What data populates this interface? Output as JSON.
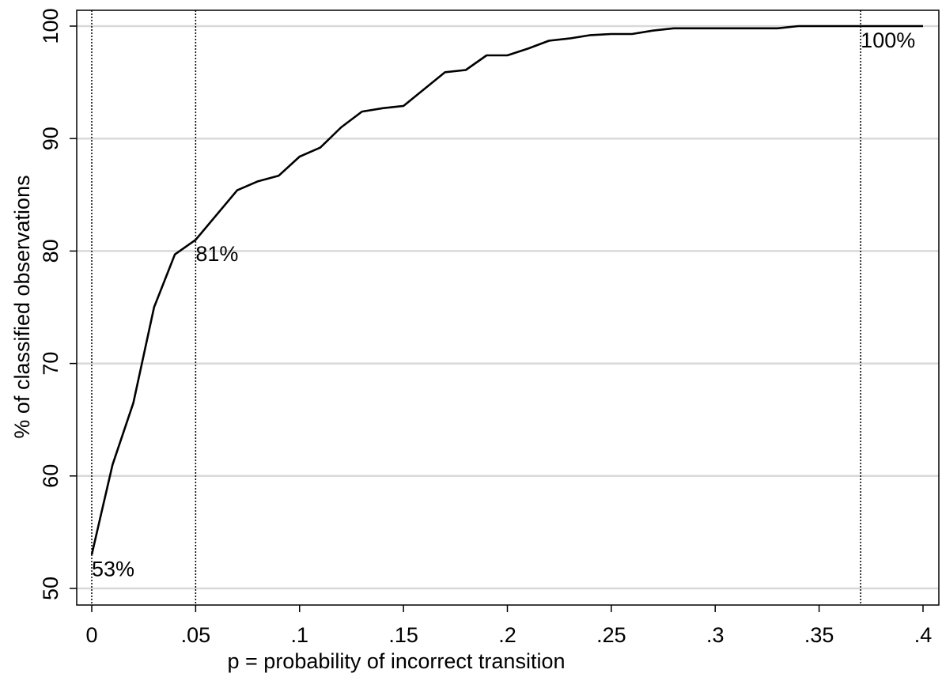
{
  "chart_data": {
    "type": "line",
    "title": "",
    "xlabel": "p = probability of incorrect transition",
    "ylabel": "% of classified observations",
    "xlim": [
      0,
      0.4
    ],
    "ylim": [
      50,
      100
    ],
    "grid": "horizontal",
    "legend": "none",
    "x_ticks": [
      {
        "value": 0,
        "label": "0"
      },
      {
        "value": 0.05,
        "label": ".05"
      },
      {
        "value": 0.1,
        "label": ".1"
      },
      {
        "value": 0.15,
        "label": ".15"
      },
      {
        "value": 0.2,
        "label": ".2"
      },
      {
        "value": 0.25,
        "label": ".25"
      },
      {
        "value": 0.3,
        "label": ".3"
      },
      {
        "value": 0.35,
        "label": ".35"
      },
      {
        "value": 0.4,
        "label": ".4"
      }
    ],
    "y_ticks": [
      {
        "value": 50,
        "label": "50"
      },
      {
        "value": 60,
        "label": "60"
      },
      {
        "value": 70,
        "label": "70"
      },
      {
        "value": 80,
        "label": "80"
      },
      {
        "value": 90,
        "label": "90"
      },
      {
        "value": 100,
        "label": "100"
      }
    ],
    "series": [
      {
        "x": [
          0,
          0.005,
          0.01,
          0.02,
          0.03,
          0.04,
          0.05,
          0.06,
          0.07,
          0.08,
          0.09,
          0.1,
          0.11,
          0.12,
          0.13,
          0.14,
          0.15,
          0.16,
          0.17,
          0.18,
          0.19,
          0.2,
          0.21,
          0.22,
          0.23,
          0.24,
          0.25,
          0.26,
          0.27,
          0.28,
          0.29,
          0.3,
          0.31,
          0.32,
          0.33,
          0.34,
          0.35,
          0.36,
          0.37,
          0.38,
          0.39,
          0.4
        ],
        "y": [
          53,
          57,
          61,
          66.5,
          75,
          79.7,
          81,
          83.2,
          85.4,
          86.2,
          86.7,
          88.4,
          89.2,
          91.0,
          92.4,
          92.7,
          92.9,
          94.4,
          95.9,
          96.1,
          97.4,
          97.4,
          98.0,
          98.7,
          98.9,
          99.2,
          99.3,
          99.3,
          99.6,
          99.8,
          99.8,
          99.8,
          99.8,
          99.8,
          99.8,
          100,
          100,
          100,
          100,
          100,
          100,
          100
        ],
        "color": "#000000"
      }
    ],
    "reference_lines": [
      {
        "x": 0,
        "label": "53%",
        "label_y": 53
      },
      {
        "x": 0.05,
        "label": "81%",
        "label_y": 81
      },
      {
        "x": 0.37,
        "label": "100%",
        "label_y": 100
      }
    ]
  }
}
